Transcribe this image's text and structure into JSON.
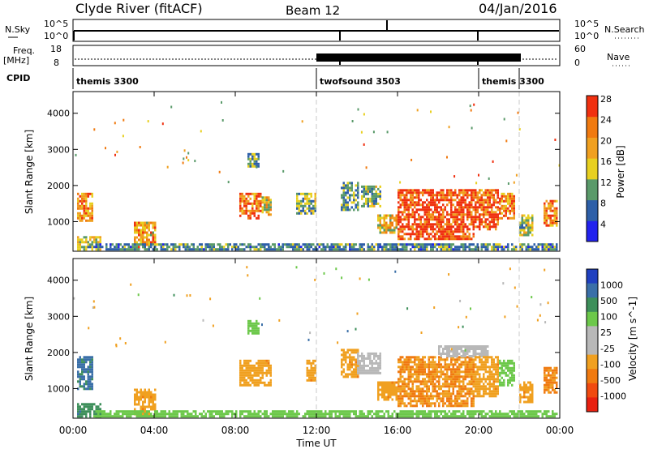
{
  "header": {
    "station": "Clyde River (fitACF)",
    "beam": "Beam 12",
    "date": "04/Jan/2016"
  },
  "status_panels": {
    "nsky_label": "N.Sky",
    "nsky_ticks": [
      "10^5",
      "10^0"
    ],
    "nsearch_label": "N.Search",
    "nsearch_ticks": [
      "10^5",
      "10^0"
    ],
    "freq_label": "Freq.",
    "freq_unit": "[MHz]",
    "freq_ticks": [
      "18",
      "8"
    ],
    "nave_label": "Nave",
    "nave_ticks": [
      "60",
      "0"
    ],
    "cpid_label": "CPID",
    "cpid_segments": [
      {
        "label": "themis 3300",
        "start_hour": 0,
        "end_hour": 12
      },
      {
        "label": "twofsound 3503",
        "start_hour": 12,
        "end_hour": 20
      },
      {
        "label": "themis 3300",
        "start_hour": 20,
        "end_hour": 22
      }
    ]
  },
  "x_axis": {
    "ticks": [
      "00:00",
      "04:00",
      "08:00",
      "12:00",
      "16:00",
      "20:00",
      "00:00"
    ],
    "label": "Time UT"
  },
  "colors": {
    "power_scale": [
      "#2222ee",
      "#2d5fa8",
      "#5a9a6a",
      "#e8d020",
      "#f0a020",
      "#f07a10",
      "#f03010"
    ],
    "velocity_scale": [
      "#2040c0",
      "#3a6fa8",
      "#3d8f5a",
      "#6cc84a",
      "#b8b8b8",
      "#b8b8b8",
      "#f0a020",
      "#f07a10",
      "#f04a10",
      "#e82010"
    ],
    "dashed_line": "#c8c8c8"
  },
  "chart_data": [
    {
      "type": "heatmap",
      "name": "power",
      "ylabel": "Slant Range [km]",
      "yticks": [
        "1000",
        "2000",
        "3000",
        "4000"
      ],
      "ylim": [
        180,
        4600
      ],
      "xlim": [
        0,
        24
      ],
      "colorbar_label": "Power [dB]",
      "colorbar_ticks": [
        "4",
        "8",
        "12",
        "16",
        "20",
        "24",
        "28"
      ],
      "colorbar_range": [
        0,
        30
      ],
      "dashed_lines_hour": [
        12,
        22
      ],
      "echo_regions": [
        {
          "t0": 0.2,
          "t1": 1.0,
          "r0": 1000,
          "r1": 1800,
          "value": 22
        },
        {
          "t0": 0.2,
          "t1": 1.4,
          "r0": 200,
          "r1": 600,
          "value": 14
        },
        {
          "t0": 3.0,
          "t1": 4.1,
          "r0": 300,
          "r1": 1000,
          "value": 20
        },
        {
          "t0": 8.2,
          "t1": 9.3,
          "r0": 1100,
          "r1": 1800,
          "value": 24
        },
        {
          "t0": 9.3,
          "t1": 9.8,
          "r0": 1200,
          "r1": 1700,
          "value": 16
        },
        {
          "t0": 8.6,
          "t1": 9.2,
          "r0": 2550,
          "r1": 2900,
          "value": 10
        },
        {
          "t0": 11.0,
          "t1": 12.0,
          "r0": 1200,
          "r1": 1800,
          "value": 12
        },
        {
          "t0": 13.2,
          "t1": 14.0,
          "r0": 1300,
          "r1": 2100,
          "value": 10
        },
        {
          "t0": 14.2,
          "t1": 15.2,
          "r0": 1400,
          "r1": 2000,
          "value": 12
        },
        {
          "t0": 15.0,
          "t1": 16.0,
          "r0": 700,
          "r1": 1200,
          "value": 18
        },
        {
          "t0": 16.0,
          "t1": 19.8,
          "r0": 500,
          "r1": 1900,
          "value": 28
        },
        {
          "t0": 19.8,
          "t1": 21.0,
          "r0": 800,
          "r1": 1900,
          "value": 26
        },
        {
          "t0": 21.0,
          "t1": 21.8,
          "r0": 1100,
          "r1": 1800,
          "value": 22
        },
        {
          "t0": 22.0,
          "t1": 22.7,
          "r0": 600,
          "r1": 1200,
          "value": 14
        },
        {
          "t0": 23.2,
          "t1": 23.9,
          "r0": 900,
          "r1": 1600,
          "value": 22
        },
        {
          "t0": 1.0,
          "t1": 23.9,
          "r0": 200,
          "r1": 400,
          "value": 9
        }
      ]
    },
    {
      "type": "heatmap",
      "name": "velocity",
      "ylabel": "Slant Range [km]",
      "yticks": [
        "1000",
        "2000",
        "3000",
        "4000"
      ],
      "ylim": [
        180,
        4600
      ],
      "xlim": [
        0,
        24
      ],
      "colorbar_label": "Velocity [m s^-1]",
      "colorbar_ticks": [
        "1000",
        "500",
        "100",
        "25",
        "-25",
        "-100",
        "-500",
        "-1000"
      ],
      "dashed_lines_hour": [
        12,
        22
      ],
      "echo_regions": [
        {
          "t0": 0.2,
          "t1": 1.0,
          "r0": 1000,
          "r1": 1900,
          "value": 300
        },
        {
          "t0": 0.2,
          "t1": 1.4,
          "r0": 200,
          "r1": 600,
          "value": 200
        },
        {
          "t0": 3.0,
          "t1": 4.1,
          "r0": 300,
          "r1": 1000,
          "value": -200
        },
        {
          "t0": 8.2,
          "t1": 9.8,
          "r0": 1100,
          "r1": 1800,
          "value": -200
        },
        {
          "t0": 8.6,
          "t1": 9.2,
          "r0": 2550,
          "r1": 2900,
          "value": 60
        },
        {
          "t0": 11.5,
          "t1": 12.0,
          "r0": 1200,
          "r1": 1800,
          "value": -200
        },
        {
          "t0": 13.2,
          "t1": 14.0,
          "r0": 1300,
          "r1": 2100,
          "value": -200
        },
        {
          "t0": 14.0,
          "t1": 15.2,
          "r0": 1400,
          "r1": 2000,
          "value": 0
        },
        {
          "t0": 15.0,
          "t1": 16.0,
          "r0": 700,
          "r1": 1200,
          "value": -200
        },
        {
          "t0": 16.0,
          "t1": 19.8,
          "r0": 500,
          "r1": 1900,
          "value": -250
        },
        {
          "t0": 18.0,
          "t1": 20.5,
          "r0": 1900,
          "r1": 2200,
          "value": 0
        },
        {
          "t0": 19.8,
          "t1": 21.0,
          "r0": 800,
          "r1": 1900,
          "value": -200
        },
        {
          "t0": 21.0,
          "t1": 21.8,
          "r0": 1100,
          "r1": 1800,
          "value": 60
        },
        {
          "t0": 22.0,
          "t1": 22.7,
          "r0": 600,
          "r1": 1200,
          "value": -200
        },
        {
          "t0": 23.2,
          "t1": 23.9,
          "r0": 900,
          "r1": 1600,
          "value": -250
        },
        {
          "t0": 1.0,
          "t1": 23.9,
          "r0": 200,
          "r1": 400,
          "value": 60
        }
      ]
    }
  ]
}
